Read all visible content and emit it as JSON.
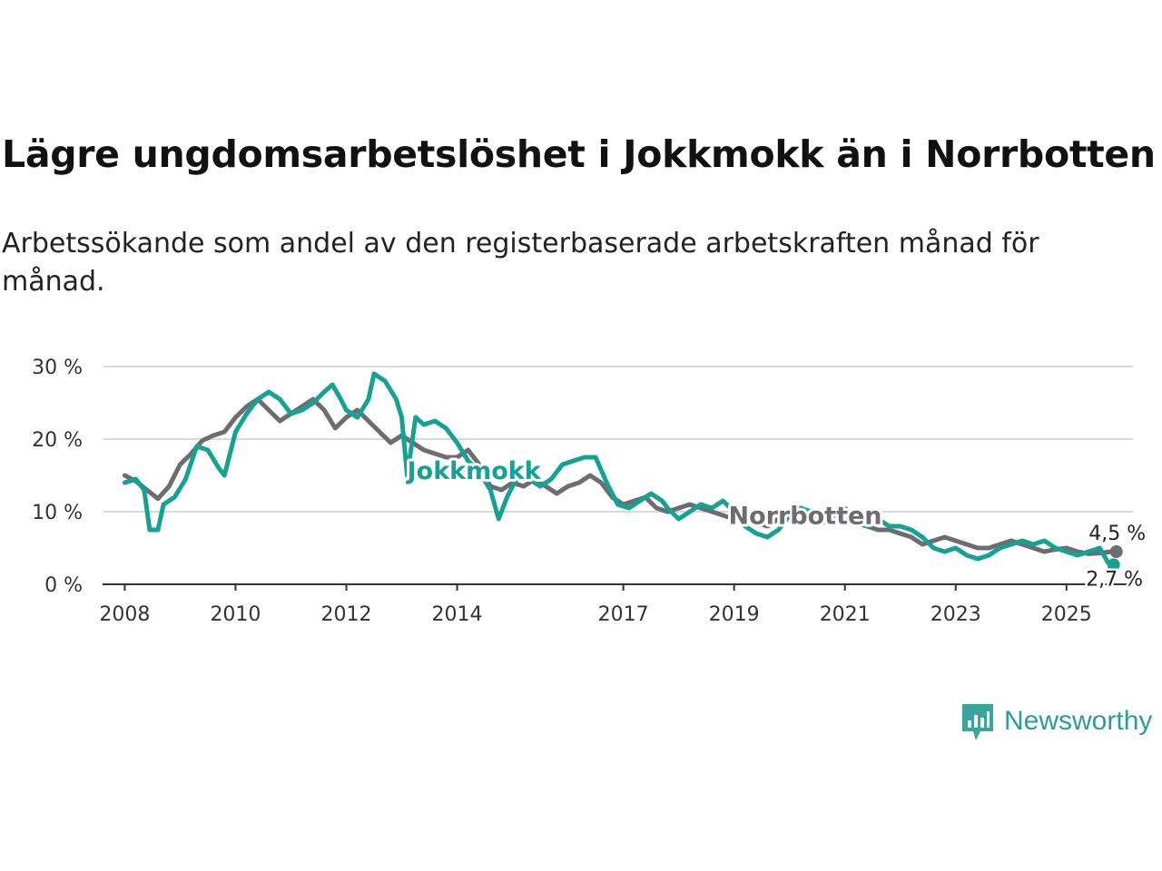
{
  "title": "Lägre ungdomsarbetslöshet i Jokkmokk än i Norrbotten",
  "subtitle": "Arbetssökande som andel av den registerbaserade arbetskraften månad för månad.",
  "brand": {
    "name": "Newsworthy",
    "icon": "newsworthy-logo-icon"
  },
  "colors": {
    "jokkmokk": "#14a293",
    "norrbotten": "#6d6c70",
    "grid": "#d9d9d9",
    "axis": "#333333"
  },
  "chart_data": {
    "type": "line",
    "title": "Lägre ungdomsarbetslöshet i Jokkmokk än i Norrbotten",
    "xlabel": "",
    "ylabel": "",
    "ylim": [
      0,
      30
    ],
    "xlim": [
      2007.6,
      2026.2
    ],
    "yticks": [
      0,
      10,
      20,
      30
    ],
    "ytick_labels": [
      "0 %",
      "10 %",
      "20 %",
      "30 %"
    ],
    "xticks": [
      2008,
      2010,
      2012,
      2014,
      2017,
      2019,
      2021,
      2023,
      2025
    ],
    "xtick_labels": [
      "2008",
      "2010",
      "2012",
      "2014",
      "2017",
      "2019",
      "2021",
      "2023",
      "2025"
    ],
    "grid": true,
    "series": [
      {
        "name": "Norrbotten",
        "label": "Norrbotten",
        "end_label": "4,5 %",
        "points": [
          [
            2008.0,
            15.0
          ],
          [
            2008.2,
            14.2
          ],
          [
            2008.4,
            13.0
          ],
          [
            2008.6,
            11.8
          ],
          [
            2008.8,
            13.5
          ],
          [
            2009.0,
            16.5
          ],
          [
            2009.2,
            18.0
          ],
          [
            2009.4,
            19.8
          ],
          [
            2009.6,
            20.5
          ],
          [
            2009.8,
            21.0
          ],
          [
            2010.0,
            23.0
          ],
          [
            2010.2,
            24.5
          ],
          [
            2010.4,
            25.5
          ],
          [
            2010.6,
            24.0
          ],
          [
            2010.8,
            22.5
          ],
          [
            2011.0,
            23.5
          ],
          [
            2011.2,
            24.5
          ],
          [
            2011.4,
            25.5
          ],
          [
            2011.6,
            24.0
          ],
          [
            2011.8,
            21.5
          ],
          [
            2012.0,
            23.0
          ],
          [
            2012.2,
            24.0
          ],
          [
            2012.4,
            22.5
          ],
          [
            2012.6,
            21.0
          ],
          [
            2012.8,
            19.5
          ],
          [
            2013.0,
            20.5
          ],
          [
            2013.2,
            19.5
          ],
          [
            2013.4,
            18.5
          ],
          [
            2013.6,
            18.0
          ],
          [
            2013.8,
            17.5
          ],
          [
            2014.0,
            17.5
          ],
          [
            2014.2,
            18.5
          ],
          [
            2014.4,
            16.5
          ],
          [
            2014.6,
            13.5
          ],
          [
            2014.8,
            13.0
          ],
          [
            2015.0,
            14.0
          ],
          [
            2015.2,
            13.5
          ],
          [
            2015.4,
            14.5
          ],
          [
            2015.6,
            13.5
          ],
          [
            2015.8,
            12.5
          ],
          [
            2016.0,
            13.5
          ],
          [
            2016.2,
            14.0
          ],
          [
            2016.4,
            15.0
          ],
          [
            2016.6,
            14.0
          ],
          [
            2016.8,
            12.0
          ],
          [
            2017.0,
            11.0
          ],
          [
            2017.2,
            11.5
          ],
          [
            2017.4,
            12.0
          ],
          [
            2017.6,
            10.5
          ],
          [
            2017.8,
            10.0
          ],
          [
            2018.0,
            10.5
          ],
          [
            2018.2,
            11.0
          ],
          [
            2018.4,
            10.5
          ],
          [
            2018.6,
            10.0
          ],
          [
            2018.8,
            9.5
          ],
          [
            2019.0,
            9.0
          ],
          [
            2019.2,
            9.5
          ],
          [
            2019.4,
            8.5
          ],
          [
            2019.6,
            8.0
          ],
          [
            2019.8,
            9.0
          ],
          [
            2020.0,
            9.5
          ],
          [
            2020.2,
            10.5
          ],
          [
            2020.4,
            9.5
          ],
          [
            2020.6,
            9.0
          ],
          [
            2020.8,
            10.0
          ],
          [
            2021.0,
            10.5
          ],
          [
            2021.2,
            9.0
          ],
          [
            2021.4,
            8.0
          ],
          [
            2021.6,
            7.5
          ],
          [
            2021.8,
            7.5
          ],
          [
            2022.0,
            7.0
          ],
          [
            2022.2,
            6.5
          ],
          [
            2022.4,
            5.5
          ],
          [
            2022.6,
            6.0
          ],
          [
            2022.8,
            6.5
          ],
          [
            2023.0,
            6.0
          ],
          [
            2023.2,
            5.5
          ],
          [
            2023.4,
            5.0
          ],
          [
            2023.6,
            5.0
          ],
          [
            2023.8,
            5.5
          ],
          [
            2024.0,
            6.0
          ],
          [
            2024.2,
            5.5
          ],
          [
            2024.4,
            5.0
          ],
          [
            2024.6,
            4.5
          ],
          [
            2024.8,
            4.8
          ],
          [
            2025.0,
            5.0
          ],
          [
            2025.2,
            4.5
          ],
          [
            2025.4,
            4.2
          ],
          [
            2025.6,
            4.3
          ],
          [
            2025.8,
            4.5
          ],
          [
            2025.9,
            4.5
          ]
        ]
      },
      {
        "name": "Jokkmokk",
        "label": "Jokkmokk",
        "end_label": "2,7 %",
        "points": [
          [
            2008.0,
            14.0
          ],
          [
            2008.2,
            14.5
          ],
          [
            2008.35,
            13.0
          ],
          [
            2008.45,
            7.5
          ],
          [
            2008.6,
            7.5
          ],
          [
            2008.7,
            11.0
          ],
          [
            2008.9,
            12.0
          ],
          [
            2009.1,
            14.5
          ],
          [
            2009.3,
            19.0
          ],
          [
            2009.5,
            18.5
          ],
          [
            2009.7,
            16.0
          ],
          [
            2009.8,
            15.0
          ],
          [
            2010.0,
            21.0
          ],
          [
            2010.2,
            23.5
          ],
          [
            2010.4,
            25.5
          ],
          [
            2010.6,
            26.5
          ],
          [
            2010.8,
            25.5
          ],
          [
            2011.0,
            23.5
          ],
          [
            2011.2,
            24.0
          ],
          [
            2011.4,
            25.0
          ],
          [
            2011.6,
            26.5
          ],
          [
            2011.75,
            27.5
          ],
          [
            2011.9,
            25.5
          ],
          [
            2012.0,
            24.0
          ],
          [
            2012.2,
            23.0
          ],
          [
            2012.4,
            25.5
          ],
          [
            2012.5,
            29.0
          ],
          [
            2012.7,
            28.0
          ],
          [
            2012.9,
            25.5
          ],
          [
            2013.0,
            23.0
          ],
          [
            2013.1,
            15.0
          ],
          [
            2013.25,
            23.0
          ],
          [
            2013.4,
            22.0
          ],
          [
            2013.6,
            22.5
          ],
          [
            2013.8,
            21.5
          ],
          [
            2014.0,
            19.5
          ],
          [
            2014.2,
            17.0
          ],
          [
            2014.4,
            15.5
          ],
          [
            2014.6,
            13.0
          ],
          [
            2014.75,
            9.0
          ],
          [
            2014.9,
            12.0
          ],
          [
            2015.1,
            15.0
          ],
          [
            2015.3,
            14.5
          ],
          [
            2015.5,
            13.5
          ],
          [
            2015.7,
            14.5
          ],
          [
            2015.9,
            16.5
          ],
          [
            2016.1,
            17.0
          ],
          [
            2016.3,
            17.5
          ],
          [
            2016.5,
            17.5
          ],
          [
            2016.7,
            14.0
          ],
          [
            2016.9,
            11.0
          ],
          [
            2017.1,
            10.5
          ],
          [
            2017.3,
            11.5
          ],
          [
            2017.5,
            12.5
          ],
          [
            2017.7,
            11.5
          ],
          [
            2017.8,
            10.5
          ],
          [
            2018.0,
            9.0
          ],
          [
            2018.2,
            10.0
          ],
          [
            2018.4,
            11.0
          ],
          [
            2018.6,
            10.5
          ],
          [
            2018.8,
            11.5
          ],
          [
            2019.0,
            10.0
          ],
          [
            2019.2,
            8.0
          ],
          [
            2019.4,
            7.0
          ],
          [
            2019.6,
            6.5
          ],
          [
            2019.8,
            7.5
          ],
          [
            2020.0,
            9.5
          ],
          [
            2020.2,
            10.5
          ],
          [
            2020.4,
            10.0
          ],
          [
            2020.6,
            8.5
          ],
          [
            2020.8,
            9.5
          ],
          [
            2021.0,
            10.0
          ],
          [
            2021.2,
            8.5
          ],
          [
            2021.4,
            8.0
          ],
          [
            2021.6,
            9.0
          ],
          [
            2021.8,
            8.0
          ],
          [
            2022.0,
            8.0
          ],
          [
            2022.2,
            7.5
          ],
          [
            2022.4,
            6.5
          ],
          [
            2022.6,
            5.0
          ],
          [
            2022.8,
            4.5
          ],
          [
            2023.0,
            5.0
          ],
          [
            2023.2,
            4.0
          ],
          [
            2023.4,
            3.5
          ],
          [
            2023.6,
            4.0
          ],
          [
            2023.8,
            5.0
          ],
          [
            2024.0,
            5.5
          ],
          [
            2024.2,
            6.0
          ],
          [
            2024.4,
            5.5
          ],
          [
            2024.6,
            6.0
          ],
          [
            2024.8,
            5.0
          ],
          [
            2025.0,
            4.5
          ],
          [
            2025.2,
            4.0
          ],
          [
            2025.4,
            4.5
          ],
          [
            2025.6,
            5.0
          ],
          [
            2025.75,
            3.0
          ],
          [
            2025.85,
            2.7
          ]
        ]
      }
    ]
  }
}
